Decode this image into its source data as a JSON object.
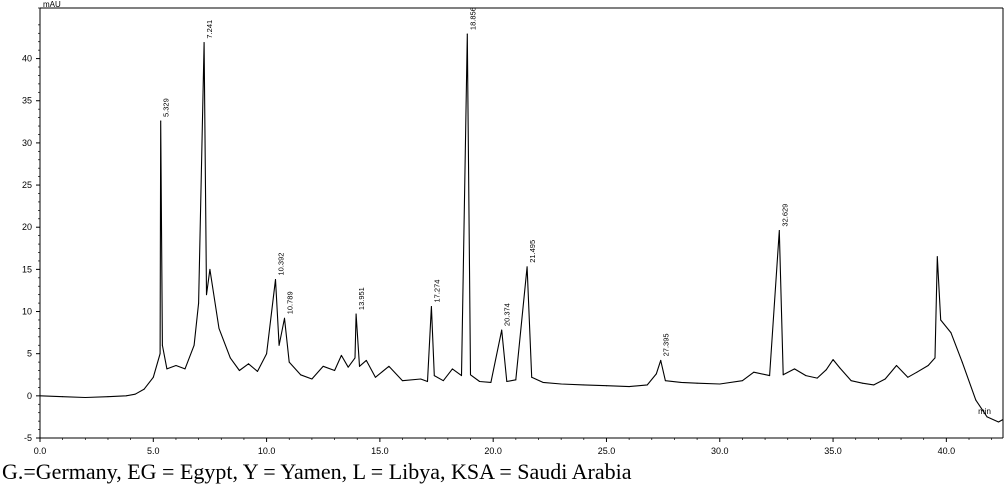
{
  "chart_data": {
    "type": "line",
    "xlabel": "min",
    "ylabel": "mAU",
    "xlim": [
      0,
      42.5
    ],
    "ylim": [
      -5,
      46
    ],
    "xticks": [
      0.0,
      5.0,
      10.0,
      15.0,
      20.0,
      25.0,
      30.0,
      35.0,
      40.0
    ],
    "xtick_labels": [
      "0.0",
      "5.0",
      "10.0",
      "15.0",
      "20.0",
      "25.0",
      "30.0",
      "35.0",
      "40.0"
    ],
    "yticks": [
      -5,
      0,
      5,
      10,
      15,
      20,
      25,
      30,
      35,
      40
    ],
    "ytick_labels": [
      "-5",
      "0",
      "5",
      "10",
      "15",
      "20",
      "25",
      "30",
      "35",
      "40"
    ],
    "grid": false,
    "series": [
      {
        "x": [
          0,
          1,
          2,
          3,
          3.8,
          4.2,
          4.6,
          5.0,
          5.3,
          5.329,
          5.4,
          5.6,
          6.0,
          6.4,
          6.8,
          7.0,
          7.241,
          7.35,
          7.5,
          7.9,
          8.4,
          8.8,
          9.2,
          9.6,
          10.0,
          10.392,
          10.55,
          10.789,
          11.0,
          11.5,
          12.0,
          12.5,
          13.0,
          13.3,
          13.6,
          13.9,
          13.951,
          14.1,
          14.4,
          14.8,
          15.4,
          16.0,
          16.8,
          17.1,
          17.274,
          17.4,
          17.8,
          18.2,
          18.6,
          18.856,
          19.0,
          19.4,
          19.9,
          20.374,
          20.6,
          21.0,
          21.495,
          21.7,
          22.2,
          23.0,
          24.0,
          25.0,
          26.0,
          26.8,
          27.2,
          27.395,
          27.6,
          28.3,
          29.0,
          30.0,
          31.0,
          31.5,
          32.2,
          32.629,
          32.8,
          33.3,
          33.8,
          34.3,
          34.7,
          35.0,
          35.3,
          35.8,
          36.3,
          36.8,
          37.3,
          37.8,
          38.3,
          38.7,
          39.2,
          39.5,
          39.6,
          39.75,
          40.2,
          40.7,
          41.3,
          41.8,
          42.3,
          42.5
        ],
        "y": [
          0,
          -0.1,
          -0.2,
          -0.1,
          0,
          0.2,
          0.8,
          2.2,
          5,
          32.6,
          6,
          3.2,
          3.6,
          3.2,
          6,
          11,
          41.9,
          12,
          15,
          8,
          4.5,
          3,
          3.8,
          2.9,
          5,
          13.8,
          6,
          9.2,
          4,
          2.5,
          2,
          3.5,
          3,
          4.8,
          3.4,
          4.5,
          9.7,
          3.5,
          4.2,
          2.2,
          3.5,
          1.8,
          2,
          1.7,
          10.6,
          2.4,
          1.8,
          3.2,
          2.4,
          42.9,
          2.5,
          1.7,
          1.6,
          7.8,
          1.7,
          1.9,
          15.3,
          2.2,
          1.6,
          1.4,
          1.3,
          1.2,
          1.1,
          1.3,
          2.6,
          4.2,
          1.8,
          1.6,
          1.5,
          1.4,
          1.8,
          2.8,
          2.4,
          19.6,
          2.5,
          3.2,
          2.4,
          2.1,
          3.1,
          4.3,
          3.3,
          1.8,
          1.5,
          1.3,
          2,
          3.6,
          2.2,
          2.8,
          3.6,
          4.5,
          16.5,
          9,
          7.5,
          4,
          -0.5,
          -2.5,
          -3.1,
          -2.8
        ]
      }
    ],
    "peak_labels": [
      {
        "x": 5.329,
        "y": 32.6,
        "label": "5.329"
      },
      {
        "x": 7.241,
        "y": 41.9,
        "label": "7.241"
      },
      {
        "x": 10.392,
        "y": 13.8,
        "label": "10.392"
      },
      {
        "x": 10.789,
        "y": 9.2,
        "label": "10.789"
      },
      {
        "x": 13.951,
        "y": 9.7,
        "label": "13.951"
      },
      {
        "x": 17.274,
        "y": 10.6,
        "label": "17.274"
      },
      {
        "x": 18.856,
        "y": 42.9,
        "label": "18.856"
      },
      {
        "x": 20.374,
        "y": 7.8,
        "label": "20.374"
      },
      {
        "x": 21.495,
        "y": 15.3,
        "label": "21.495"
      },
      {
        "x": 27.395,
        "y": 4.2,
        "label": "27.395"
      },
      {
        "x": 32.629,
        "y": 19.6,
        "label": "32.629"
      }
    ]
  },
  "caption": "G.=Germany, EG = Egypt, Y = Yamen, L = Libya, KSA = Saudi Arabia"
}
